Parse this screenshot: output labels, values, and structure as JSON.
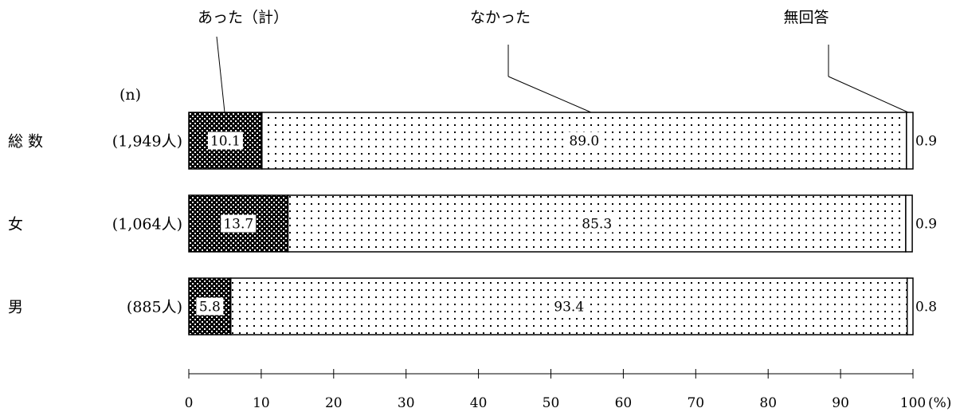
{
  "chart_data": {
    "type": "bar",
    "stacked": true,
    "orientation": "horizontal",
    "n_header": "(n)",
    "categories": [
      "総 数",
      "女",
      "男"
    ],
    "n_labels": [
      "(1,949人)",
      "(1,064人)",
      "(885人)"
    ],
    "series": [
      {
        "name": "あった（計）",
        "values": [
          10.1,
          13.7,
          5.8
        ],
        "labels": [
          "10.1",
          "13.7",
          "5.8"
        ],
        "pattern": "dense-dots-dark"
      },
      {
        "name": "なかった",
        "values": [
          89.0,
          85.3,
          93.4
        ],
        "labels": [
          "89.0",
          "85.3",
          "93.4"
        ],
        "pattern": "sparse-dots-light"
      },
      {
        "name": "無回答",
        "values": [
          0.9,
          0.9,
          0.8
        ],
        "labels": [
          "0.9",
          "0.9",
          "0.8"
        ],
        "pattern": "white"
      }
    ],
    "xlim": [
      0,
      100
    ],
    "xticks": [
      0,
      10,
      20,
      30,
      40,
      50,
      60,
      70,
      80,
      90,
      100
    ],
    "xunit": "(%)",
    "grid": false
  }
}
